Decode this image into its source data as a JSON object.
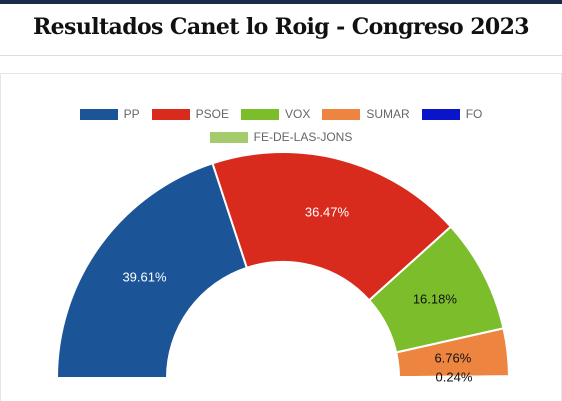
{
  "page": {
    "title": "Resultados Canet lo Roig - Congreso 2023"
  },
  "chart_data": {
    "type": "pie",
    "variant": "half-doughnut",
    "title": "Resultados Canet lo Roig - Congreso 2023",
    "legend_position": "top",
    "series": [
      {
        "name": "PP",
        "value": 39.61,
        "label": "39.61%",
        "color": "#1b5497",
        "label_color": "#ffffff"
      },
      {
        "name": "PSOE",
        "value": 36.47,
        "label": "36.47%",
        "color": "#d92a1e",
        "label_color": "#ffffff"
      },
      {
        "name": "VOX",
        "value": 16.18,
        "label": "16.18%",
        "color": "#7cbd2b",
        "label_color": "#111111"
      },
      {
        "name": "SUMAR",
        "value": 6.76,
        "label": "6.76%",
        "color": "#ed8540",
        "label_color": "#111111"
      },
      {
        "name": "FO",
        "value": 0.0,
        "label": "",
        "color": "#0a14c8",
        "label_color": "#111111"
      },
      {
        "name": "FE-DE-LAS-JONS",
        "value": 0.24,
        "label": "0.24%",
        "color": "#a4cc6c",
        "label_color": "#111111"
      }
    ]
  }
}
